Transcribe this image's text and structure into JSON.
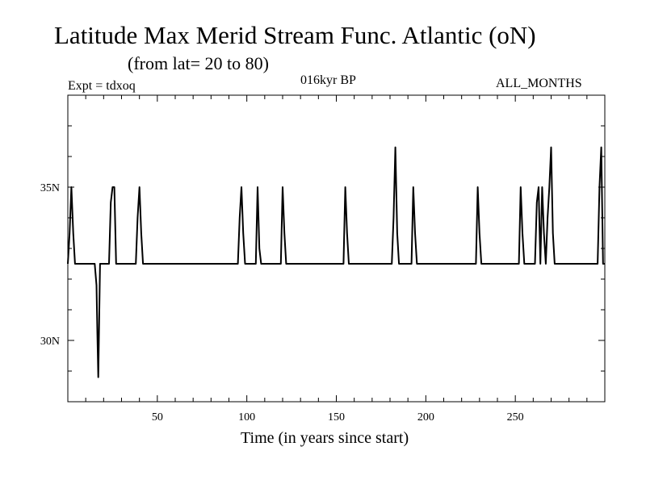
{
  "chart_data": {
    "type": "line",
    "title": "Latitude Max Merid Stream Func. Atlantic (oN)",
    "subtitle": "(from lat= 20 to 80)",
    "expt_label": "Expt = tdxoq",
    "period_label": "016kyr BP",
    "months_label": "ALL_MONTHS",
    "xlabel": "Time (in years since start)",
    "ylabel": "",
    "xlim": [
      0,
      300
    ],
    "ylim": [
      28,
      38
    ],
    "xticks": [
      50,
      100,
      150,
      200,
      250
    ],
    "xtick_labels": [
      "50",
      "100",
      "150",
      "200",
      "250"
    ],
    "yticks": [
      30,
      35
    ],
    "ytick_labels": [
      "30N",
      "35N"
    ],
    "grid": false,
    "baseline": 32.5,
    "series": [
      {
        "color": "#000000",
        "x": [
          0,
          1,
          2,
          3,
          4,
          15,
          16,
          16.5,
          17,
          18,
          23,
          24,
          25,
          26,
          27,
          38,
          39,
          40,
          41,
          42,
          50,
          51,
          95,
          96,
          97,
          98,
          99,
          105,
          106,
          107,
          108,
          119,
          120,
          121,
          122,
          154,
          155,
          156,
          157,
          181,
          182,
          183,
          184,
          185,
          192,
          193,
          194,
          195,
          228,
          229,
          230,
          231,
          245,
          246,
          252,
          253,
          254,
          255,
          261,
          262,
          263,
          264,
          265,
          266,
          267,
          268,
          269,
          270,
          271,
          272,
          273,
          296,
          297,
          298,
          299,
          300
        ],
        "y": [
          32.5,
          33.5,
          35,
          33.5,
          32.5,
          32.5,
          31.8,
          30.2,
          28.8,
          32.5,
          32.5,
          34.5,
          35,
          35,
          32.5,
          32.5,
          34,
          35,
          33.5,
          32.5,
          32.5,
          32.5,
          32.5,
          34,
          35,
          33.5,
          32.5,
          32.5,
          35,
          33,
          32.5,
          32.5,
          35,
          33.5,
          32.5,
          32.5,
          35,
          33.5,
          32.5,
          32.5,
          34,
          36.3,
          33.5,
          32.5,
          32.5,
          35,
          33.5,
          32.5,
          32.5,
          35,
          33.5,
          32.5,
          32.5,
          32.5,
          32.5,
          35,
          33.5,
          32.5,
          32.5,
          34.5,
          35,
          32.5,
          35,
          33.5,
          32.5,
          34,
          35,
          36.3,
          33.5,
          32.5,
          32.5,
          32.5,
          35,
          36.3,
          32.5,
          32.5
        ]
      }
    ]
  }
}
